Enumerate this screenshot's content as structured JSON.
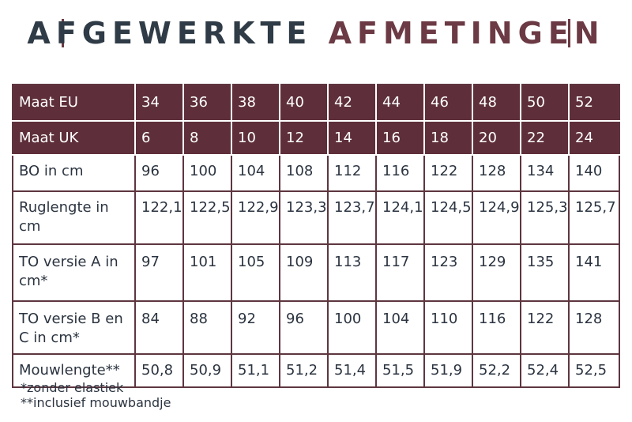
{
  "header": {
    "title_part1": "AFGEWERKTE",
    "title_part2": "AFMETINGEN"
  },
  "table": {
    "rows": [
      {
        "label": "Maat EU",
        "values": [
          "34",
          "36",
          "38",
          "40",
          "42",
          "44",
          "46",
          "48",
          "50",
          "52"
        ]
      },
      {
        "label": "Maat UK",
        "values": [
          "6",
          "8",
          "10",
          "12",
          "14",
          "16",
          "18",
          "20",
          "22",
          "24"
        ]
      },
      {
        "label": "BO in cm",
        "values": [
          "96",
          "100",
          "104",
          "108",
          "112",
          "116",
          "122",
          "128",
          "134",
          "140"
        ]
      },
      {
        "label": "Ruglengte in cm",
        "values": [
          "122,1",
          "122,5",
          "122,9",
          "123,3",
          "123,7",
          "124,1",
          "124,5",
          "124,9",
          "125,3",
          "125,7"
        ]
      },
      {
        "label": "TO versie A in cm*",
        "values": [
          "97",
          "101",
          "105",
          "109",
          "113",
          "117",
          "123",
          "129",
          "135",
          "141"
        ]
      },
      {
        "label": "TO versie B en C in cm*",
        "values": [
          "84",
          "88",
          "92",
          "96",
          "100",
          "104",
          "110",
          "116",
          "122",
          "128"
        ]
      },
      {
        "label": "Mouwlengte**",
        "values": [
          "50,8",
          "50,9",
          "51,1",
          "51,2",
          "51,4",
          "51,5",
          "51,9",
          "52,2",
          "52,4",
          "52,5"
        ]
      }
    ]
  },
  "notes": {
    "note1": "*zonder elastiek",
    "note2": "**inclusief mouwbandje"
  },
  "colors": {
    "header_bg": "#5e2f3a",
    "accent": "#6b3a44",
    "text": "#2f3b46"
  }
}
